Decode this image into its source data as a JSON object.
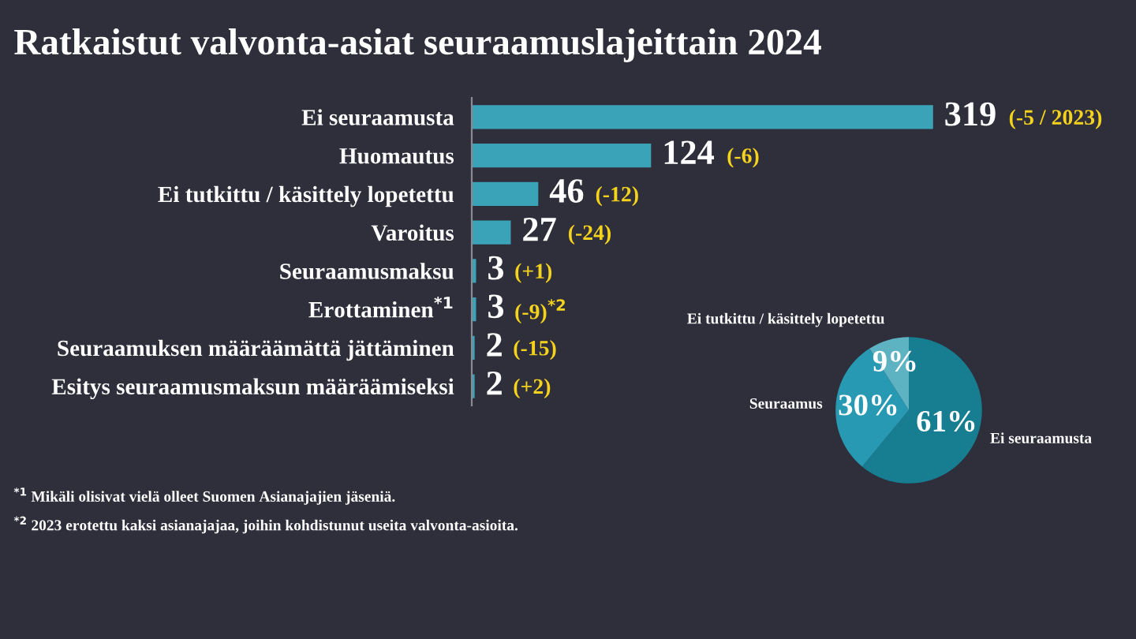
{
  "chart_data": [
    {
      "type": "bar",
      "orientation": "horizontal",
      "title": "Ratkaistut valvonta-asiat seuraamuslajeittain 2024",
      "categories": [
        "Ei seuraamusta",
        "Huomautus",
        "Ei tutkittu / käsittely lopetettu",
        "Varoitus",
        "Seuraamusmaksu",
        "Erottaminen$^{*1}$",
        "Seuraamuksen määräämättä jättäminen",
        "Esitys seuraamusmaksun määräämiseksi"
      ],
      "values": [
        319,
        124,
        46,
        27,
        3,
        3,
        2,
        2
      ],
      "color": "#3aa3b8",
      "data_labels": true,
      "tick_labels": "y",
      "annotations": [
        "(-5 / 2023)",
        "(-6)",
        "(-12)",
        "(-24)",
        "(+1)",
        "(-9)$^{*2}$",
        "(-15)",
        "(+2)",
        "$^{*1}$ Mikäli olisivat vielä olleet Suomen Asianajajien jäseniä.",
        "$^{*2}$ 2023 erotettu kaksi asianajajaa, joihin kohdistunut useita valvonta-asioita."
      ]
    },
    {
      "type": "pie",
      "categories": [
        "Ei seuraamusta",
        "Seuraamus",
        "Ei tutkittu / käsittely lopetettu"
      ],
      "values": [
        61,
        30,
        9
      ],
      "colors": [
        "#177d91",
        "#2899b2",
        "#5eb3c3"
      ],
      "value_labels": [
        "61%",
        "30%",
        "9%"
      ]
    }
  ]
}
